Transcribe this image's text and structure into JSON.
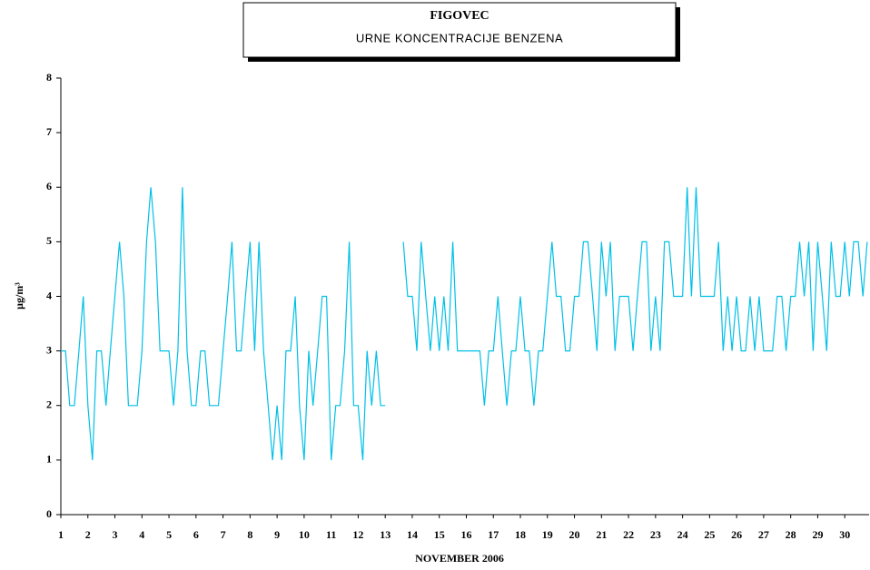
{
  "chart_data": {
    "type": "line",
    "title": "FIGOVEC",
    "subtitle": "URNE KONCENTRACIJE BENZENA",
    "x_label": "NOVEMBER 2006",
    "y_label": "μg/m³",
    "x": [
      1,
      1.17,
      1.33,
      1.5,
      1.67,
      1.83,
      2,
      2.17,
      2.33,
      2.5,
      2.67,
      2.83,
      3,
      3.17,
      3.33,
      3.5,
      3.67,
      3.83,
      4,
      4.17,
      4.33,
      4.5,
      4.67,
      4.83,
      5,
      5.17,
      5.33,
      5.5,
      5.67,
      5.83,
      6,
      6.17,
      6.33,
      6.5,
      6.67,
      6.83,
      7,
      7.17,
      7.33,
      7.5,
      7.67,
      7.83,
      8,
      8.17,
      8.33,
      8.5,
      8.67,
      8.83,
      9,
      9.17,
      9.33,
      9.5,
      9.67,
      9.83,
      10,
      10.17,
      10.33,
      10.5,
      10.67,
      10.83,
      11,
      11.17,
      11.33,
      11.5,
      11.67,
      11.83,
      12,
      12.17,
      12.33,
      12.5,
      12.67,
      12.83,
      13,
      13.17,
      13.33,
      13.5,
      13.67,
      13.83,
      14,
      14.17,
      14.33,
      14.5,
      14.67,
      14.83,
      15,
      15.17,
      15.33,
      15.5,
      15.67,
      15.83,
      16,
      16.17,
      16.33,
      16.5,
      16.67,
      16.83,
      17,
      17.17,
      17.33,
      17.5,
      17.67,
      17.83,
      18,
      18.17,
      18.33,
      18.5,
      18.67,
      18.83,
      19,
      19.17,
      19.33,
      19.5,
      19.67,
      19.83,
      20,
      20.17,
      20.33,
      20.5,
      20.67,
      20.83,
      21,
      21.17,
      21.33,
      21.5,
      21.67,
      21.83,
      22,
      22.17,
      22.33,
      22.5,
      22.67,
      22.83,
      23,
      23.17,
      23.33,
      23.5,
      23.67,
      23.83,
      24,
      24.17,
      24.33,
      24.5,
      24.67,
      24.83,
      25,
      25.17,
      25.33,
      25.5,
      25.67,
      25.83,
      26,
      26.17,
      26.33,
      26.5,
      26.67,
      26.83,
      27,
      27.17,
      27.33,
      27.5,
      27.67,
      27.83,
      28,
      28.17,
      28.33,
      28.5,
      28.67,
      28.83,
      29,
      29.17,
      29.33,
      29.5,
      29.67,
      29.83,
      30,
      30.17,
      30.33,
      30.5,
      30.67,
      30.83
    ],
    "series": [
      {
        "color": "#00c0e8",
        "values": [
          3,
          3,
          2,
          2,
          3,
          4,
          2,
          1,
          3,
          3,
          2,
          3,
          4,
          5,
          4,
          2,
          2,
          2,
          3,
          5,
          6,
          5,
          3,
          3,
          3,
          2,
          3,
          6,
          3,
          2,
          2,
          3,
          3,
          2,
          2,
          2,
          3,
          4,
          5,
          3,
          3,
          4,
          5,
          3,
          5,
          3,
          2,
          1,
          2,
          1,
          3,
          3,
          4,
          2,
          1,
          3,
          2,
          3,
          4,
          4,
          1,
          2,
          2,
          3,
          5,
          2,
          2,
          1,
          3,
          2,
          3,
          2,
          2,
          null,
          null,
          null,
          5,
          4,
          4,
          3,
          5,
          4,
          3,
          4,
          3,
          4,
          3,
          5,
          3,
          3,
          3,
          3,
          3,
          3,
          2,
          3,
          3,
          4,
          3,
          2,
          3,
          3,
          4,
          3,
          3,
          2,
          3,
          3,
          4,
          5,
          4,
          4,
          3,
          3,
          4,
          4,
          5,
          5,
          4,
          3,
          5,
          4,
          5,
          3,
          4,
          4,
          4,
          3,
          4,
          5,
          5,
          3,
          4,
          3,
          5,
          5,
          4,
          4,
          4,
          6,
          4,
          6,
          4,
          4,
          4,
          4,
          5,
          3,
          4,
          3,
          4,
          3,
          3,
          4,
          3,
          4,
          3,
          3,
          3,
          4,
          4,
          3,
          4,
          4,
          5,
          4,
          5,
          3,
          5,
          4,
          3,
          5,
          4,
          4,
          5,
          4,
          5,
          5,
          4,
          5
        ]
      }
    ],
    "xlim": [
      1,
      30.9
    ],
    "xticks": [
      1,
      2,
      3,
      4,
      5,
      6,
      7,
      8,
      9,
      10,
      11,
      12,
      13,
      14,
      15,
      16,
      17,
      18,
      19,
      20,
      21,
      22,
      23,
      24,
      25,
      26,
      27,
      28,
      29,
      30
    ],
    "ylim": [
      0,
      8
    ],
    "yticks": [
      0,
      1,
      2,
      3,
      4,
      5,
      6,
      7,
      8
    ]
  }
}
